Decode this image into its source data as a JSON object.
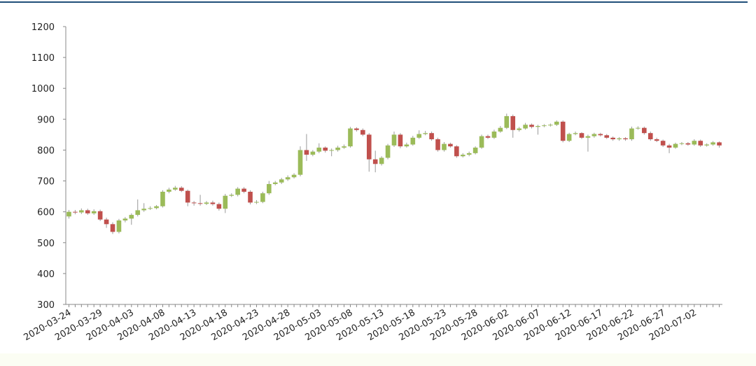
{
  "chart_data": {
    "type": "candlestick",
    "categories": [
      "2020-03-24",
      "2020-03-25",
      "2020-03-26",
      "2020-03-27",
      "2020-03-28",
      "2020-03-29",
      "2020-03-30",
      "2020-03-31",
      "2020-04-01",
      "2020-04-02",
      "2020-04-03",
      "2020-04-04",
      "2020-04-05",
      "2020-04-06",
      "2020-04-07",
      "2020-04-08",
      "2020-04-09",
      "2020-04-10",
      "2020-04-11",
      "2020-04-12",
      "2020-04-13",
      "2020-04-14",
      "2020-04-15",
      "2020-04-16",
      "2020-04-17",
      "2020-04-18",
      "2020-04-19",
      "2020-04-20",
      "2020-04-21",
      "2020-04-22",
      "2020-04-23",
      "2020-04-24",
      "2020-04-25",
      "2020-04-26",
      "2020-04-27",
      "2020-04-28",
      "2020-04-29",
      "2020-04-30",
      "2020-05-01",
      "2020-05-02",
      "2020-05-03",
      "2020-05-04",
      "2020-05-05",
      "2020-05-06",
      "2020-05-07",
      "2020-05-08",
      "2020-05-09",
      "2020-05-10",
      "2020-05-11",
      "2020-05-12",
      "2020-05-13",
      "2020-05-14",
      "2020-05-15",
      "2020-05-16",
      "2020-05-17",
      "2020-05-18",
      "2020-05-19",
      "2020-05-20",
      "2020-05-21",
      "2020-05-22",
      "2020-05-23",
      "2020-05-24",
      "2020-05-25",
      "2020-05-26",
      "2020-05-27",
      "2020-05-28",
      "2020-05-29",
      "2020-05-30",
      "2020-05-31",
      "2020-06-01",
      "2020-06-02",
      "2020-06-03",
      "2020-06-04",
      "2020-06-05",
      "2020-06-06",
      "2020-06-07",
      "2020-06-08",
      "2020-06-09",
      "2020-06-10",
      "2020-06-11",
      "2020-06-12",
      "2020-06-13",
      "2020-06-14",
      "2020-06-15",
      "2020-06-16",
      "2020-06-17",
      "2020-06-18",
      "2020-06-19",
      "2020-06-20",
      "2020-06-21",
      "2020-06-22",
      "2020-06-23",
      "2020-06-24",
      "2020-06-25",
      "2020-06-26",
      "2020-06-27",
      "2020-06-28",
      "2020-06-29",
      "2020-06-30",
      "2020-07-01",
      "2020-07-02",
      "2020-07-03",
      "2020-07-04",
      "2020-07-05",
      "2020-07-06"
    ],
    "open": [
      585,
      600,
      598,
      605,
      595,
      602,
      575,
      560,
      535,
      572,
      578,
      590,
      605,
      610,
      612,
      618,
      665,
      672,
      678,
      668,
      630,
      628,
      626,
      630,
      625,
      610,
      652,
      655,
      675,
      665,
      630,
      632,
      660,
      690,
      695,
      705,
      712,
      720,
      800,
      785,
      795,
      808,
      798,
      800,
      808,
      812,
      870,
      865,
      850,
      770,
      755,
      775,
      815,
      850,
      812,
      818,
      840,
      852,
      855,
      835,
      800,
      820,
      812,
      780,
      785,
      790,
      808,
      845,
      840,
      860,
      872,
      910,
      865,
      870,
      882,
      875,
      878,
      880,
      882,
      892,
      830,
      852,
      855,
      840,
      845,
      852,
      848,
      840,
      835,
      838,
      835,
      870,
      872,
      855,
      835,
      830,
      815,
      808,
      820,
      822,
      818,
      830,
      815,
      818,
      825
    ],
    "high": [
      606,
      606,
      611,
      610,
      608,
      607,
      581,
      566,
      577,
      583,
      595,
      640,
      628,
      618,
      622,
      670,
      678,
      684,
      683,
      672,
      635,
      655,
      635,
      636,
      630,
      658,
      660,
      680,
      680,
      670,
      638,
      665,
      700,
      700,
      710,
      718,
      725,
      812,
      852,
      800,
      822,
      812,
      805,
      814,
      818,
      875,
      874,
      870,
      855,
      798,
      780,
      820,
      860,
      855,
      824,
      846,
      864,
      862,
      860,
      840,
      826,
      824,
      816,
      790,
      795,
      812,
      850,
      850,
      866,
      878,
      918,
      915,
      875,
      888,
      886,
      882,
      884,
      886,
      896,
      896,
      856,
      860,
      858,
      850,
      856,
      856,
      852,
      844,
      842,
      842,
      876,
      877,
      876,
      860,
      840,
      834,
      820,
      824,
      826,
      826,
      835,
      834,
      822,
      829,
      828
    ],
    "low": [
      578,
      592,
      593,
      590,
      590,
      570,
      548,
      528,
      530,
      566,
      558,
      585,
      600,
      606,
      608,
      614,
      660,
      668,
      664,
      618,
      620,
      620,
      622,
      620,
      604,
      596,
      648,
      650,
      660,
      624,
      625,
      628,
      655,
      686,
      690,
      700,
      708,
      715,
      765,
      780,
      790,
      792,
      780,
      795,
      804,
      808,
      860,
      845,
      730,
      728,
      750,
      770,
      810,
      806,
      808,
      814,
      836,
      848,
      830,
      795,
      795,
      808,
      775,
      776,
      780,
      786,
      804,
      836,
      836,
      856,
      868,
      840,
      860,
      866,
      870,
      850,
      874,
      876,
      878,
      825,
      826,
      848,
      836,
      795,
      840,
      844,
      836,
      830,
      830,
      830,
      830,
      866,
      850,
      830,
      826,
      810,
      790,
      804,
      816,
      814,
      814,
      810,
      811,
      814,
      808
    ],
    "close": [
      600,
      598,
      605,
      595,
      602,
      575,
      560,
      535,
      572,
      578,
      590,
      605,
      610,
      612,
      618,
      665,
      672,
      678,
      668,
      630,
      628,
      626,
      630,
      625,
      610,
      652,
      655,
      675,
      665,
      630,
      632,
      660,
      690,
      695,
      705,
      712,
      720,
      800,
      785,
      795,
      808,
      798,
      800,
      808,
      812,
      870,
      865,
      850,
      770,
      755,
      775,
      815,
      850,
      812,
      818,
      840,
      852,
      855,
      835,
      800,
      820,
      812,
      780,
      785,
      790,
      808,
      845,
      840,
      860,
      872,
      910,
      865,
      870,
      882,
      875,
      878,
      880,
      882,
      892,
      830,
      852,
      855,
      840,
      845,
      852,
      848,
      840,
      835,
      838,
      835,
      870,
      872,
      855,
      835,
      830,
      815,
      808,
      820,
      822,
      818,
      830,
      815,
      818,
      825,
      815
    ],
    "up_color": "#9bbb59",
    "down_color": "#c0504d",
    "xticks": [
      "2020-03-24",
      "2020-03-29",
      "2020-04-03",
      "2020-04-08",
      "2020-04-13",
      "2020-04-18",
      "2020-04-23",
      "2020-04-28",
      "2020-05-03",
      "2020-05-08",
      "2020-05-13",
      "2020-05-18",
      "2020-05-23",
      "2020-05-28",
      "2020-06-02",
      "2020-06-07",
      "2020-06-12",
      "2020-06-17",
      "2020-06-22",
      "2020-06-27",
      "2020-07-02"
    ],
    "ylim": [
      300,
      1200
    ],
    "yticks": [
      300,
      400,
      500,
      600,
      700,
      800,
      900,
      1000,
      1100,
      1200
    ]
  }
}
